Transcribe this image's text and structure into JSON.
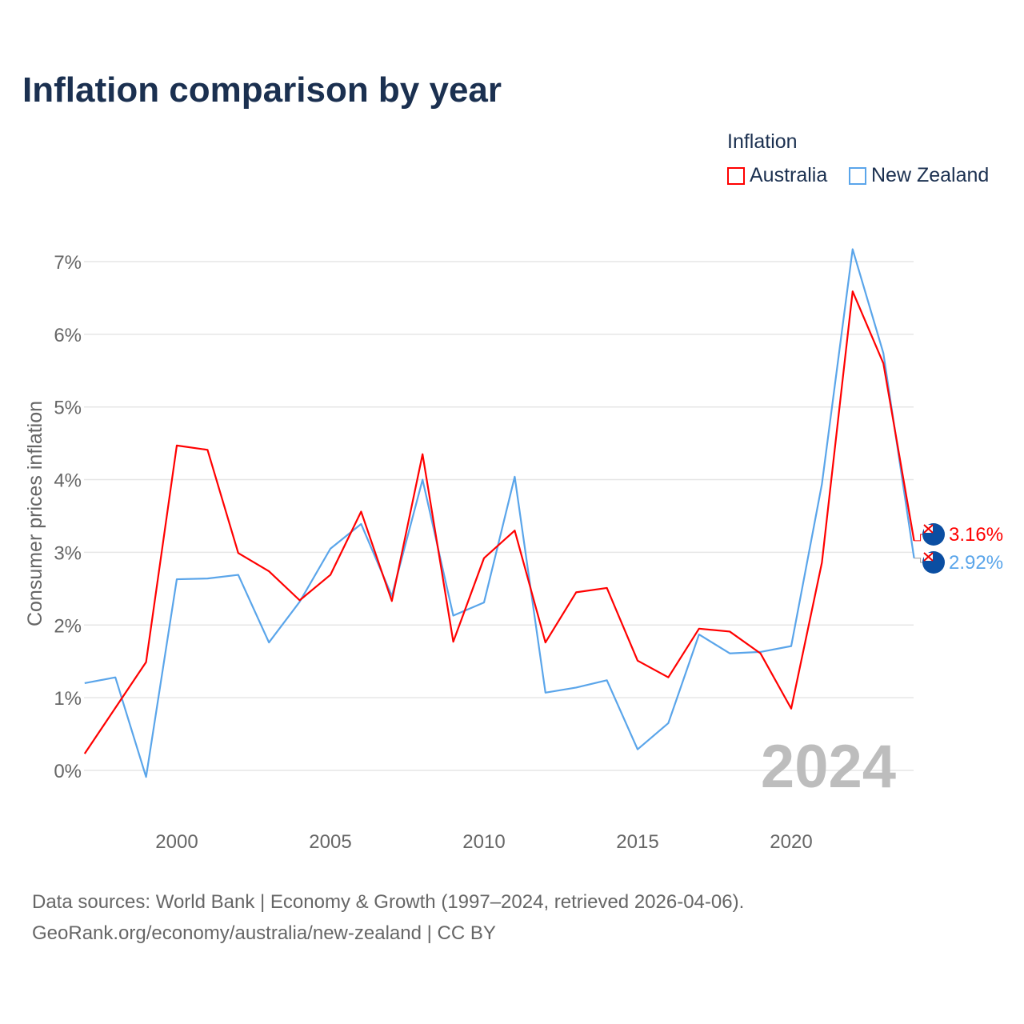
{
  "title": "Inflation comparison by year",
  "legend": {
    "title": "Inflation",
    "items": [
      {
        "label": "Australia",
        "color": "#ff0000"
      },
      {
        "label": "New Zealand",
        "color": "#5aa5ea"
      }
    ]
  },
  "source": [
    "Data sources: World Bank | Economy & Growth (1997–2024, retrieved 2026-04-06).",
    "GeoRank.org/economy/australia/new-zealand | CC BY"
  ],
  "chart_data": {
    "type": "line",
    "title": "Inflation comparison by year",
    "xlabel": "",
    "ylabel": "Consumer prices inflation",
    "x": [
      1997,
      1998,
      1999,
      2000,
      2001,
      2002,
      2003,
      2004,
      2005,
      2006,
      2007,
      2008,
      2009,
      2010,
      2011,
      2012,
      2013,
      2014,
      2015,
      2016,
      2017,
      2018,
      2019,
      2020,
      2021,
      2022,
      2023,
      2024
    ],
    "xlim": [
      1997,
      2024
    ],
    "ylim": [
      -0.4,
      7.3
    ],
    "xticks": [
      "2000",
      "2005",
      "2010",
      "2015",
      "2020"
    ],
    "yticks": [
      "0%",
      "1%",
      "2%",
      "3%",
      "4%",
      "5%",
      "6%",
      "7%"
    ],
    "watermark_year": "2024",
    "series": [
      {
        "name": "Australia",
        "color": "#ff0000",
        "end_label": "3.16%",
        "values": [
          0.23,
          0.86,
          1.49,
          4.47,
          4.41,
          2.99,
          2.74,
          2.34,
          2.69,
          3.56,
          2.33,
          4.35,
          1.77,
          2.92,
          3.3,
          1.76,
          2.45,
          2.51,
          1.51,
          1.28,
          1.95,
          1.91,
          1.61,
          0.85,
          2.86,
          6.59,
          5.6,
          3.16
        ]
      },
      {
        "name": "New Zealand",
        "color": "#5aa5ea",
        "end_label": "2.92%",
        "values": [
          1.2,
          1.28,
          -0.09,
          2.63,
          2.64,
          2.69,
          1.76,
          2.32,
          3.05,
          3.39,
          2.4,
          4.0,
          2.13,
          2.31,
          4.04,
          1.07,
          1.14,
          1.24,
          0.29,
          0.65,
          1.87,
          1.61,
          1.63,
          1.71,
          3.94,
          7.17,
          5.74,
          2.92
        ]
      }
    ]
  }
}
